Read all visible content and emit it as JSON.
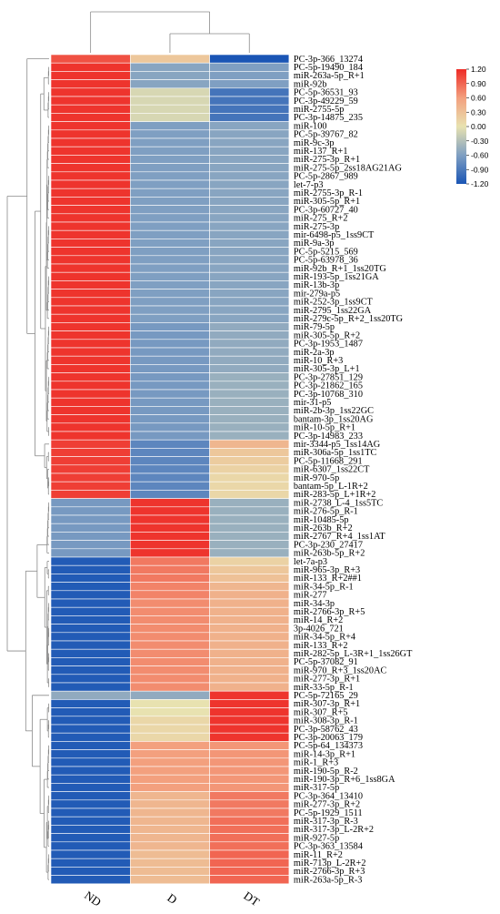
{
  "chart_data": {
    "type": "heatmap",
    "columns": [
      "ND",
      "D",
      "DT"
    ],
    "rows": [
      {
        "label": "PC-3p-366_13274",
        "values": [
          1.0,
          0.25,
          -1.2
        ]
      },
      {
        "label": "PC-5p-19490_184",
        "values": [
          1.15,
          -0.55,
          -0.6
        ]
      },
      {
        "label": "miR-263a-5p_R+1",
        "values": [
          1.15,
          -0.55,
          -0.6
        ]
      },
      {
        "label": "miR-92b",
        "values": [
          1.15,
          -0.55,
          -0.6
        ]
      },
      {
        "label": "PC-5p-36531_93",
        "values": [
          1.15,
          -0.1,
          -0.95
        ]
      },
      {
        "label": "PC-3p-49229_59",
        "values": [
          1.15,
          -0.1,
          -0.95
        ]
      },
      {
        "label": "miR-2755-5p",
        "values": [
          1.15,
          -0.1,
          -0.95
        ]
      },
      {
        "label": "PC-3p-14875_235",
        "values": [
          1.15,
          -0.1,
          -0.95
        ]
      },
      {
        "label": "miR-100",
        "values": [
          1.15,
          -0.6,
          -0.55
        ]
      },
      {
        "label": "PC-5p-39767_82",
        "values": [
          1.15,
          -0.6,
          -0.55
        ]
      },
      {
        "label": "miR-9c-3p",
        "values": [
          1.15,
          -0.6,
          -0.55
        ]
      },
      {
        "label": "miR-137_R+1",
        "values": [
          1.15,
          -0.6,
          -0.55
        ]
      },
      {
        "label": "miR-275-3p_R+1",
        "values": [
          1.15,
          -0.6,
          -0.55
        ]
      },
      {
        "label": "miR-275-5p_2ss18AG21AG",
        "values": [
          1.15,
          -0.6,
          -0.55
        ]
      },
      {
        "label": "PC-5p-2867_989",
        "values": [
          1.15,
          -0.6,
          -0.55
        ]
      },
      {
        "label": "let-7-p3",
        "values": [
          1.15,
          -0.6,
          -0.55
        ]
      },
      {
        "label": "miR-2755-3p_R-1",
        "values": [
          1.15,
          -0.6,
          -0.55
        ]
      },
      {
        "label": "miR-305-5p_R+1",
        "values": [
          1.15,
          -0.6,
          -0.55
        ]
      },
      {
        "label": "PC-3p-60727_40",
        "values": [
          1.15,
          -0.6,
          -0.55
        ]
      },
      {
        "label": "miR-275_R+2",
        "values": [
          1.15,
          -0.6,
          -0.55
        ]
      },
      {
        "label": "miR-275-3p",
        "values": [
          1.15,
          -0.6,
          -0.55
        ]
      },
      {
        "label": "mir-6498-p5_1ss9CT",
        "values": [
          1.15,
          -0.6,
          -0.55
        ]
      },
      {
        "label": "miR-9a-3p",
        "values": [
          1.15,
          -0.6,
          -0.55
        ]
      },
      {
        "label": "PC-5p-5215_569",
        "values": [
          1.15,
          -0.6,
          -0.55
        ]
      },
      {
        "label": "PC-5p-63978_36",
        "values": [
          1.15,
          -0.6,
          -0.55
        ]
      },
      {
        "label": "miR-92b_R+1_1ss20TG",
        "values": [
          1.15,
          -0.6,
          -0.55
        ]
      },
      {
        "label": "miR-193-5p_1ss21GA",
        "values": [
          1.15,
          -0.6,
          -0.55
        ]
      },
      {
        "label": "miR-13b-3p",
        "values": [
          1.15,
          -0.6,
          -0.55
        ]
      },
      {
        "label": "mir-279a-p5",
        "values": [
          1.15,
          -0.6,
          -0.55
        ]
      },
      {
        "label": "miR-252-3p_1ss9CT",
        "values": [
          1.15,
          -0.6,
          -0.55
        ]
      },
      {
        "label": "miR-2795_1ss22GA",
        "values": [
          1.15,
          -0.6,
          -0.55
        ]
      },
      {
        "label": "miR-279c-5p_R+2_1ss20TG",
        "values": [
          1.15,
          -0.6,
          -0.55
        ]
      },
      {
        "label": "miR-79-5p",
        "values": [
          1.15,
          -0.65,
          -0.5
        ]
      },
      {
        "label": "miR-305-5p_R+2",
        "values": [
          1.15,
          -0.65,
          -0.5
        ]
      },
      {
        "label": "PC-3p-1953_1487",
        "values": [
          1.15,
          -0.65,
          -0.5
        ]
      },
      {
        "label": "miR-2a-3p",
        "values": [
          1.15,
          -0.65,
          -0.5
        ]
      },
      {
        "label": "miR-10_R+3",
        "values": [
          1.15,
          -0.65,
          -0.5
        ]
      },
      {
        "label": "miR-305-3p_L+1",
        "values": [
          1.15,
          -0.65,
          -0.5
        ]
      },
      {
        "label": "PC-3p-27851_129",
        "values": [
          1.15,
          -0.65,
          -0.45
        ]
      },
      {
        "label": "PC-3p-21862_165",
        "values": [
          1.15,
          -0.65,
          -0.45
        ]
      },
      {
        "label": "PC-3p-10768_310",
        "values": [
          1.15,
          -0.65,
          -0.45
        ]
      },
      {
        "label": "mir-31-p5",
        "values": [
          1.15,
          -0.65,
          -0.45
        ]
      },
      {
        "label": "miR-2b-3p_1ss22GC",
        "values": [
          1.15,
          -0.65,
          -0.45
        ]
      },
      {
        "label": "bantam-3p_1ss20AG",
        "values": [
          1.15,
          -0.65,
          -0.45
        ]
      },
      {
        "label": "miR-10-5p_R+1",
        "values": [
          1.15,
          -0.65,
          -0.45
        ]
      },
      {
        "label": "PC-3p-14983_233",
        "values": [
          1.15,
          -0.65,
          -0.45
        ]
      },
      {
        "label": "mir-3344-p5_1ss14AG",
        "values": [
          1.1,
          -0.8,
          0.4
        ]
      },
      {
        "label": "miR-306a-5p_1ss1TC",
        "values": [
          1.1,
          -0.8,
          0.25
        ]
      },
      {
        "label": "PC-5p-11668_291",
        "values": [
          1.1,
          -0.8,
          0.2
        ]
      },
      {
        "label": "miR-6307_1ss22CT",
        "values": [
          1.1,
          -0.8,
          0.15
        ]
      },
      {
        "label": "miR-970-5p",
        "values": [
          1.1,
          -0.8,
          0.1
        ]
      },
      {
        "label": "bantam-5p_L-1R+2",
        "values": [
          1.1,
          -0.8,
          0.1
        ]
      },
      {
        "label": "miR-283-5p_L+1R+2",
        "values": [
          1.1,
          -0.8,
          0.1
        ]
      },
      {
        "label": "miR-2738_L-4_1ss5TC",
        "values": [
          -0.65,
          1.15,
          -0.45
        ]
      },
      {
        "label": "miR-276-5p_R-1",
        "values": [
          -0.65,
          1.15,
          -0.45
        ]
      },
      {
        "label": "miR-10485-5p",
        "values": [
          -0.65,
          1.15,
          -0.45
        ]
      },
      {
        "label": "miR-263b_R+2",
        "values": [
          -0.65,
          1.15,
          -0.45
        ]
      },
      {
        "label": "miR-2767_R+4_1ss1AT",
        "values": [
          -0.65,
          1.15,
          -0.45
        ]
      },
      {
        "label": "PC-3p-230_27417",
        "values": [
          -0.65,
          1.15,
          -0.45
        ]
      },
      {
        "label": "miR-263b-5p_R+2",
        "values": [
          -0.65,
          1.15,
          -0.45
        ]
      },
      {
        "label": "let-7a-p3",
        "values": [
          -1.15,
          0.8,
          0.15
        ]
      },
      {
        "label": "miR-965-3p_R+3",
        "values": [
          -1.15,
          0.8,
          0.25
        ]
      },
      {
        "label": "miR-133_R+2##1",
        "values": [
          -1.15,
          0.8,
          0.3
        ]
      },
      {
        "label": "miR-34-5p_R-1",
        "values": [
          -1.15,
          0.75,
          0.4
        ]
      },
      {
        "label": "miR-277",
        "values": [
          -1.15,
          0.75,
          0.45
        ]
      },
      {
        "label": "miR-34-3p",
        "values": [
          -1.15,
          0.7,
          0.45
        ]
      },
      {
        "label": "miR-2766-3p_R+5",
        "values": [
          -1.15,
          0.7,
          0.45
        ]
      },
      {
        "label": "miR-14_R+2",
        "values": [
          -1.15,
          0.7,
          0.45
        ]
      },
      {
        "label": "3p-4026_721",
        "values": [
          -1.15,
          0.7,
          0.45
        ]
      },
      {
        "label": "miR-34-5p_R+4",
        "values": [
          -1.15,
          0.7,
          0.45
        ]
      },
      {
        "label": "miR-133_R+2",
        "values": [
          -1.15,
          0.7,
          0.45
        ]
      },
      {
        "label": "miR-282-5p_L-3R+1_1ss26GT",
        "values": [
          -1.15,
          0.7,
          0.45
        ]
      },
      {
        "label": "PC-5p-37082_91",
        "values": [
          -1.15,
          0.7,
          0.45
        ]
      },
      {
        "label": "miR-970_R+3_1ss20AC",
        "values": [
          -1.15,
          0.7,
          0.45
        ]
      },
      {
        "label": "miR-277-3p_R+1",
        "values": [
          -1.15,
          0.7,
          0.45
        ]
      },
      {
        "label": "miR-33-5p_R-1",
        "values": [
          -1.15,
          0.7,
          0.45
        ]
      },
      {
        "label": "PC-5p-72165_29",
        "values": [
          -0.5,
          -0.5,
          1.15
        ]
      },
      {
        "label": "miR-307-3p_R+1",
        "values": [
          -1.15,
          0.0,
          1.15
        ]
      },
      {
        "label": "miR-307_R+5",
        "values": [
          -1.15,
          0.0,
          1.15
        ]
      },
      {
        "label": "miR-308-3p_R-1",
        "values": [
          -1.15,
          0.1,
          1.15
        ]
      },
      {
        "label": "PC-3p-58762_43",
        "values": [
          -1.15,
          0.1,
          1.15
        ]
      },
      {
        "label": "PC-3p-20063_179",
        "values": [
          -1.15,
          0.1,
          1.15
        ]
      },
      {
        "label": "PC-5p-64_134373",
        "values": [
          -1.15,
          0.6,
          0.65
        ]
      },
      {
        "label": "miR-14-3p_R+1",
        "values": [
          -1.15,
          0.6,
          0.65
        ]
      },
      {
        "label": "miR-1_R+3",
        "values": [
          -1.15,
          0.6,
          0.65
        ]
      },
      {
        "label": "miR-190-5p_R-2",
        "values": [
          -1.15,
          0.6,
          0.65
        ]
      },
      {
        "label": "miR-190-3p_R+6_1ss8GA",
        "values": [
          -1.15,
          0.6,
          0.65
        ]
      },
      {
        "label": "miR-317-5p",
        "values": [
          -1.15,
          0.6,
          0.65
        ]
      },
      {
        "label": "PC-3p-364_13410",
        "values": [
          -1.15,
          0.4,
          0.8
        ]
      },
      {
        "label": "miR-277-3p_R+2",
        "values": [
          -1.15,
          0.4,
          0.8
        ]
      },
      {
        "label": "PC-5p-1929_1511",
        "values": [
          -1.15,
          0.4,
          0.8
        ]
      },
      {
        "label": "miR-317-3p_R-3",
        "values": [
          -1.15,
          0.4,
          0.85
        ]
      },
      {
        "label": "miR-317-3p_L-2R+2",
        "values": [
          -1.15,
          0.4,
          0.85
        ]
      },
      {
        "label": "miR-927-5p",
        "values": [
          -1.15,
          0.4,
          0.85
        ]
      },
      {
        "label": "PC-3p-363_13584",
        "values": [
          -1.15,
          0.4,
          0.85
        ]
      },
      {
        "label": "miR-11_R+2",
        "values": [
          -1.15,
          0.35,
          0.9
        ]
      },
      {
        "label": "miR-713p_L-2R+2",
        "values": [
          -1.15,
          0.35,
          0.9
        ]
      },
      {
        "label": "miR-2766-3p_R+3",
        "values": [
          -1.15,
          0.35,
          0.9
        ]
      },
      {
        "label": "miR-263a-5p_R-3",
        "values": [
          -1.15,
          0.35,
          0.9
        ]
      }
    ],
    "color_scale": {
      "min": -1.2,
      "max": 1.2,
      "stops": [
        {
          "value": -1.2,
          "color": "#1a55b5"
        },
        {
          "value": -0.6,
          "color": "#7f9fc2"
        },
        {
          "value": 0.0,
          "color": "#e8e2b0"
        },
        {
          "value": 0.6,
          "color": "#f3a07e"
        },
        {
          "value": 1.2,
          "color": "#ee2a26"
        }
      ],
      "ticks": [
        "1.20",
        "0.90",
        "0.60",
        "0.30",
        "0.00",
        "-0.30",
        "-0.60",
        "-0.90",
        "-1.20"
      ]
    },
    "legend_position": "top-right",
    "column_dendrogram": true,
    "row_dendrogram": true
  }
}
